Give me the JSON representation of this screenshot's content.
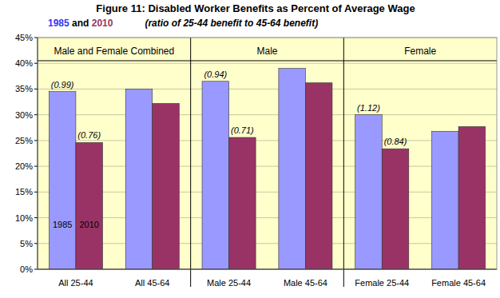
{
  "chart_data": {
    "type": "bar",
    "title": "Figure 11: Disabled Worker Benefits as Percent of Average Wage",
    "legend_joiner": "and",
    "subtitle": "(ratio of 25-44 benefit to 45-64 benefit)",
    "categories": [
      "All 25-44",
      "All 45-64",
      "Male 25-44",
      "Male 45-64",
      "Female 25-44",
      "Female 45-64"
    ],
    "groups": [
      {
        "label": "Male and Female Combined",
        "size": 2
      },
      {
        "label": "Male",
        "size": 2
      },
      {
        "label": "Female",
        "size": 2
      }
    ],
    "series": [
      {
        "name": "1985",
        "color": "#9999ff",
        "values": [
          34.5,
          35.0,
          36.5,
          39.0,
          30.0,
          26.8
        ],
        "annotations": [
          "(0.99)",
          null,
          "(0.94)",
          null,
          "(1.12)",
          null
        ]
      },
      {
        "name": "2010",
        "color": "#993366",
        "values": [
          24.6,
          32.2,
          25.6,
          36.2,
          23.4,
          27.7
        ],
        "annotations": [
          "(0.76)",
          null,
          "(0.71)",
          null,
          "(0.84)",
          null
        ]
      }
    ],
    "ylim": [
      0,
      45
    ],
    "yticks": [
      {
        "value": 0,
        "label": "0%"
      },
      {
        "value": 5,
        "label": "5%"
      },
      {
        "value": 10,
        "label": "10%"
      },
      {
        "value": 15,
        "label": "15%"
      },
      {
        "value": 20,
        "label": "20%"
      },
      {
        "value": 25,
        "label": "25%"
      },
      {
        "value": 30,
        "label": "30%"
      },
      {
        "value": 35,
        "label": "35%"
      },
      {
        "value": 40,
        "label": "40%"
      },
      {
        "value": 45,
        "label": "45%"
      }
    ],
    "grid": true
  }
}
